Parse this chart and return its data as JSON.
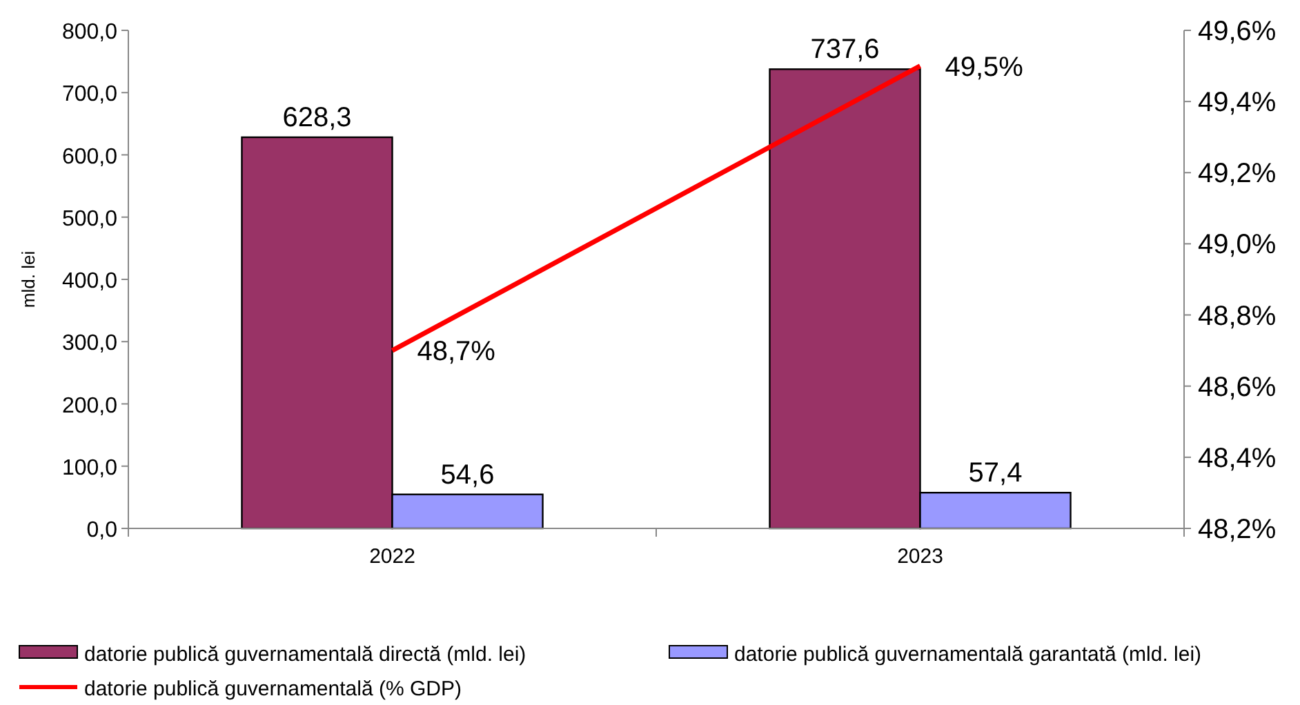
{
  "chart_data": {
    "type": "bar",
    "categories": [
      "2022",
      "2023"
    ],
    "ylabel": "mld. lei",
    "ylim": [
      0,
      800
    ],
    "yticks": [
      {
        "value": 0,
        "label": "0,0"
      },
      {
        "value": 100,
        "label": "100,0"
      },
      {
        "value": 200,
        "label": "200,0"
      },
      {
        "value": 300,
        "label": "300,0"
      },
      {
        "value": 400,
        "label": "400,0"
      },
      {
        "value": 500,
        "label": "500,0"
      },
      {
        "value": 600,
        "label": "600,0"
      },
      {
        "value": 700,
        "label": "700,0"
      },
      {
        "value": 800,
        "label": "800,0"
      }
    ],
    "y2lim": [
      48.2,
      49.6
    ],
    "y2ticks": [
      {
        "value": 48.2,
        "label": "48,2%"
      },
      {
        "value": 48.4,
        "label": "48,4%"
      },
      {
        "value": 48.6,
        "label": "48,6%"
      },
      {
        "value": 48.8,
        "label": "48,8%"
      },
      {
        "value": 49.0,
        "label": "49,0%"
      },
      {
        "value": 49.2,
        "label": "49,2%"
      },
      {
        "value": 49.4,
        "label": "49,4%"
      },
      {
        "value": 49.6,
        "label": "49,6%"
      }
    ],
    "series": [
      {
        "name": "datorie publică guvernamentală directă (mld. lei)",
        "color": "#993366",
        "values": [
          628.3,
          737.6
        ],
        "value_labels": [
          "628,3",
          "737,6"
        ]
      },
      {
        "name": "datorie publică guvernamentală garantată (mld. lei)",
        "color": "#9999ff",
        "values": [
          54.6,
          57.4
        ],
        "value_labels": [
          "54,6",
          "57,4"
        ]
      },
      {
        "name": "datorie publică guvernamentală    (% GDP)",
        "type": "line",
        "axis": "y2",
        "color": "#ff0000",
        "values": [
          48.7,
          49.5
        ],
        "value_labels": [
          "48,7%",
          "49,5%"
        ]
      }
    ],
    "grid": false,
    "legend": "bottom"
  }
}
